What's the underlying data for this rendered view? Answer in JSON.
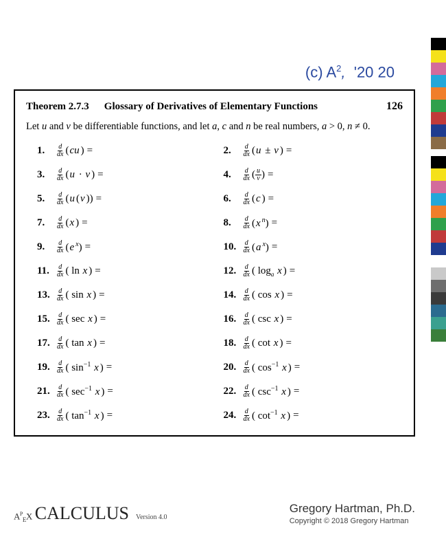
{
  "header": {
    "text_html": "(c) A<span class='sup'>2</span><span class='ital'>,</span>&nbsp;&nbsp;'20 20"
  },
  "theorem": {
    "number": "Theorem 2.7.3",
    "title": "Glossary of Derivatives of Elementary Functions",
    "page": "126",
    "intro_html": "Let <span class='mi'>u</span> and <span class='mi'>v</span> be differentiable functions, and let <span class='mi'>a</span>, <span class='mi'>c</span> and <span class='mi'>n</span> be real numbers, <span class='mi'>a</span> &gt; 0, <span class='mi'>n</span> &ne; 0."
  },
  "entries": [
    {
      "n": "1.",
      "arg": "(<span class='arg'>cu</span>)"
    },
    {
      "n": "2.",
      "arg": "(<span class='arg'>u</span> ± <span class='arg'>v</span>)"
    },
    {
      "n": "3.",
      "arg": "(<span class='arg'>u</span> · <span class='arg'>v</span>)"
    },
    {
      "n": "4.",
      "arg": "(<span class='frac'><span class='t'>u</span><span class='b'>v</span></span>)"
    },
    {
      "n": "5.",
      "arg": "(<span class='arg'>u</span>(<span class='arg'>v</span>))"
    },
    {
      "n": "6.",
      "arg": "(<span class='arg'>c</span>)"
    },
    {
      "n": "7.",
      "arg": "(<span class='arg'>x</span>)"
    },
    {
      "n": "8.",
      "arg": "(<span class='arg'>x</span><span class='sup2'><i>n</i></span>)"
    },
    {
      "n": "9.",
      "arg": "(<span class='arg'>e</span><span class='sup2'><i>x</i></span>)"
    },
    {
      "n": "10.",
      "arg": "(<span class='arg'>a</span><span class='sup2'><i>x</i></span>)"
    },
    {
      "n": "11.",
      "arg": "( ln <span class='arg'>x</span>)"
    },
    {
      "n": "12.",
      "arg": "( log<span style='font-size:9px;vertical-align:sub;font-style:italic'>a</span> <span class='arg'>x</span>)"
    },
    {
      "n": "13.",
      "arg": "( sin <span class='arg'>x</span>)"
    },
    {
      "n": "14.",
      "arg": "( cos <span class='arg'>x</span>)"
    },
    {
      "n": "15.",
      "arg": "( sec <span class='arg'>x</span>)"
    },
    {
      "n": "16.",
      "arg": "( csc <span class='arg'>x</span>)"
    },
    {
      "n": "17.",
      "arg": "( tan <span class='arg'>x</span>)"
    },
    {
      "n": "18.",
      "arg": "( cot <span class='arg'>x</span>)"
    },
    {
      "n": "19.",
      "arg": "( sin<span class='supinv'>−1</span> <span class='arg'>x</span>)"
    },
    {
      "n": "20.",
      "arg": "( cos<span class='supinv'>−1</span> <span class='arg'>x</span>)"
    },
    {
      "n": "21.",
      "arg": "( sec<span class='supinv'>−1</span> <span class='arg'>x</span>)"
    },
    {
      "n": "22.",
      "arg": "( csc<span class='supinv'>−1</span> <span class='arg'>x</span>)"
    },
    {
      "n": "23.",
      "arg": "( tan<span class='supinv'>−1</span> <span class='arg'>x</span>)"
    },
    {
      "n": "24.",
      "arg": "( cot<span class='supinv'>−1</span> <span class='arg'>x</span>)"
    }
  ],
  "footer": {
    "apex_pre": "A<span class='sup-e'>P</span><span style='font-size:9px;vertical-align:sub'>E</span>X",
    "calc": "CALCULUS",
    "version": "Version 4.0",
    "author": "Gregory Hartman, Ph.D.",
    "copyright": "Copyright © 2018 Gregory Hartman"
  },
  "colorbar": {
    "group1": [
      "#000000",
      "#f5e11a",
      "#d36b9b",
      "#23a7d9",
      "#f07e2a",
      "#2fa04b",
      "#c03a3a",
      "#1f3b8f",
      "#8a6b46"
    ],
    "group2": [
      "#000000",
      "#f5e11a",
      "#d36b9b",
      "#23a7d9",
      "#f07e2a",
      "#2fa04b",
      "#c03a3a",
      "#1f3b8f",
      "#ffffff",
      "#c9c9c9",
      "#6e6e6e",
      "#3a3a3a",
      "#2b6b8f",
      "#3aa08f",
      "#3a7f3a"
    ]
  }
}
